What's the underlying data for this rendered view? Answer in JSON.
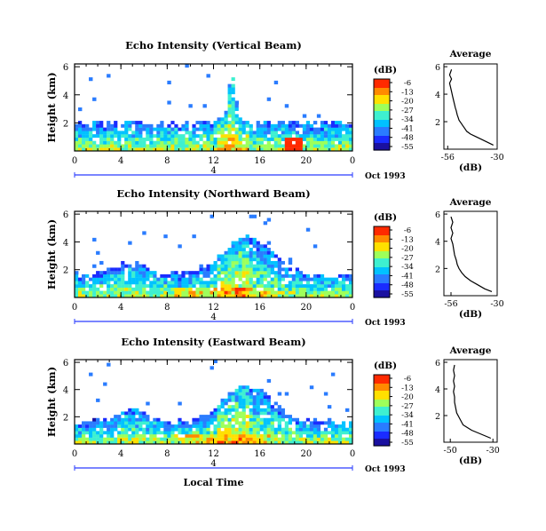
{
  "bottom_label": "Local Time",
  "colorbar": {
    "unit": "(dB)",
    "ticks": [
      "-6",
      "-13",
      "-20",
      "-27",
      "-34",
      "-41",
      "-48",
      "-55"
    ],
    "colors": [
      "#ff2a00",
      "#ff8a00",
      "#ffd800",
      "#b8ff3a",
      "#4cffb0",
      "#00d6ff",
      "#2a7cff",
      "#1a2cff",
      "#1a10a0"
    ]
  },
  "chart_data": [
    {
      "type": "heatmap",
      "title": "Echo Intensity (Vertical Beam)",
      "ylabel": "Height (km)",
      "x_ticks": [
        "0",
        "4",
        "8",
        "12",
        "16",
        "20",
        "0"
      ],
      "y_ticks": [
        "2",
        "4",
        "6"
      ],
      "ylim": [
        0,
        6.2
      ],
      "date": "4",
      "date_suffix": "Oct 1993",
      "profile": {
        "title": "Average",
        "xlabel": "(dB)",
        "x_ticks": [
          "-56",
          "-30"
        ],
        "y_ticks": [
          "2",
          "4",
          "6"
        ],
        "xlim": [
          -58,
          -30
        ],
        "points": [
          [
            -32,
            0.3
          ],
          [
            -35,
            0.5
          ],
          [
            -38,
            0.7
          ],
          [
            -41,
            0.9
          ],
          [
            -44,
            1.1
          ],
          [
            -46,
            1.3
          ],
          [
            -47,
            1.5
          ],
          [
            -48,
            1.7
          ],
          [
            -49,
            1.9
          ],
          [
            -50,
            2.1
          ],
          [
            -50.5,
            2.3
          ],
          [
            -51,
            2.5
          ],
          [
            -51.5,
            2.8
          ],
          [
            -52,
            3.0
          ],
          [
            -52.5,
            3.3
          ],
          [
            -53,
            3.6
          ],
          [
            -53.5,
            3.9
          ],
          [
            -54,
            4.2
          ],
          [
            -54.5,
            4.5
          ],
          [
            -55,
            4.8
          ],
          [
            -54,
            5.1
          ],
          [
            -55,
            5.4
          ],
          [
            -54,
            5.8
          ]
        ]
      }
    },
    {
      "type": "heatmap",
      "title": "Echo Intensity (Northward Beam)",
      "ylabel": "Height (km)",
      "x_ticks": [
        "0",
        "4",
        "8",
        "12",
        "16",
        "20",
        "0"
      ],
      "y_ticks": [
        "2",
        "4",
        "6"
      ],
      "ylim": [
        0,
        6.2
      ],
      "date": "4",
      "date_suffix": "Oct 1993",
      "profile": {
        "title": "Average",
        "xlabel": "(dB)",
        "x_ticks": [
          "-56",
          "-30"
        ],
        "y_ticks": [
          "2",
          "4",
          "6"
        ],
        "xlim": [
          -60,
          -30
        ],
        "points": [
          [
            -33,
            0.3
          ],
          [
            -37,
            0.5
          ],
          [
            -41,
            0.8
          ],
          [
            -45,
            1.1
          ],
          [
            -48,
            1.4
          ],
          [
            -50,
            1.7
          ],
          [
            -51.5,
            2.0
          ],
          [
            -52.5,
            2.3
          ],
          [
            -53,
            2.6
          ],
          [
            -54,
            3.0
          ],
          [
            -54.5,
            3.4
          ],
          [
            -55,
            3.8
          ],
          [
            -56,
            4.2
          ],
          [
            -55,
            4.6
          ],
          [
            -56,
            5.0
          ],
          [
            -55,
            5.4
          ],
          [
            -56,
            5.8
          ]
        ]
      }
    },
    {
      "type": "heatmap",
      "title": "Echo Intensity (Eastward Beam)",
      "ylabel": "Height (km)",
      "x_ticks": [
        "0",
        "4",
        "8",
        "12",
        "16",
        "20",
        "0"
      ],
      "y_ticks": [
        "2",
        "4",
        "6"
      ],
      "ylim": [
        0,
        6.2
      ],
      "date": "4",
      "date_suffix": "Oct 1993",
      "profile": {
        "title": "Average",
        "xlabel": "(dB)",
        "x_ticks": [
          "-50",
          "-30"
        ],
        "y_ticks": [
          "2",
          "4",
          "6"
        ],
        "xlim": [
          -53,
          -28
        ],
        "points": [
          [
            -31,
            0.3
          ],
          [
            -34,
            0.5
          ],
          [
            -37,
            0.7
          ],
          [
            -40,
            0.9
          ],
          [
            -42,
            1.1
          ],
          [
            -44,
            1.3
          ],
          [
            -45,
            1.6
          ],
          [
            -46,
            1.9
          ],
          [
            -47,
            2.2
          ],
          [
            -47.5,
            2.6
          ],
          [
            -48,
            3.0
          ],
          [
            -48,
            3.4
          ],
          [
            -48.5,
            3.8
          ],
          [
            -48,
            4.2
          ],
          [
            -48.5,
            4.6
          ],
          [
            -48,
            5.0
          ],
          [
            -48.5,
            5.4
          ],
          [
            -48,
            5.8
          ]
        ]
      }
    }
  ]
}
